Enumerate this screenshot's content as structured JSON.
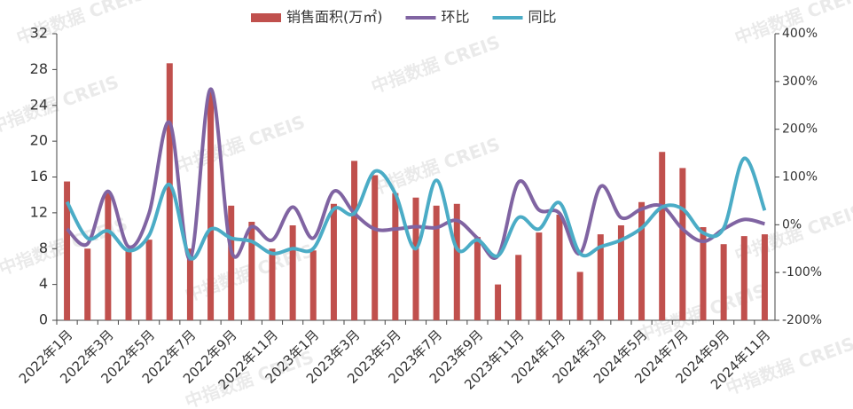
{
  "chart_data": {
    "type": "bar_line",
    "watermark": "中指数据 CREIS",
    "categories": [
      "2022年1月",
      null,
      "2022年3月",
      null,
      "2022年5月",
      null,
      "2022年7月",
      null,
      "2022年9月",
      null,
      "2022年11月",
      null,
      "2023年1月",
      null,
      "2023年3月",
      null,
      "2023年5月",
      null,
      "2023年7月",
      null,
      "2023年9月",
      null,
      "2023年11月",
      null,
      "2024年1月",
      null,
      "2024年3月",
      null,
      "2024年5月",
      null,
      "2024年7月",
      null,
      "2024年9月",
      null,
      "2024年11月"
    ],
    "series": [
      {
        "name": "销售面积(万㎡)",
        "type": "bar",
        "color": "#c0504d",
        "values": [
          15.5,
          8,
          14.2,
          8,
          9,
          28.7,
          8,
          25.5,
          12.8,
          11,
          8,
          10.6,
          7.8,
          13,
          17.8,
          16.2,
          14.2,
          13.7,
          12.8,
          13,
          9.3,
          4,
          7.3,
          9.8,
          11.8,
          5.4,
          9.6,
          10.6,
          13.2,
          18.8,
          17,
          10.4,
          8.5,
          9.4,
          9.6
        ]
      },
      {
        "name": "环比",
        "type": "line",
        "axis": "y2",
        "color": "#8064a2",
        "values": [
          -9,
          -40,
          70,
          -46,
          24,
          214,
          -72,
          284,
          -54,
          -4,
          -32,
          37,
          -28,
          70,
          24,
          -9,
          -9,
          -4,
          -6,
          9,
          -28,
          -65,
          89,
          31,
          24,
          -60,
          80,
          15,
          33,
          39,
          -9,
          -35,
          -9,
          11,
          2
        ]
      },
      {
        "name": "同比",
        "type": "line",
        "axis": "y2",
        "color": "#4bacc6",
        "values": [
          48,
          -28,
          -13,
          -54,
          -22,
          84,
          -69,
          -9,
          -28,
          -35,
          -60,
          -50,
          -50,
          33,
          24,
          112,
          65,
          -50,
          93,
          -50,
          -32,
          -65,
          15,
          -9,
          46,
          -60,
          -46,
          -32,
          -7,
          37,
          33,
          -17,
          -7,
          139,
          30
        ]
      }
    ],
    "ylim": [
      0,
      32
    ],
    "yticks": [
      0,
      4,
      8,
      12,
      16,
      20,
      24,
      28,
      32
    ],
    "y2lim": [
      -200,
      400
    ],
    "y2ticks": [
      {
        "value": -200,
        "label": "-200%"
      },
      {
        "value": -100,
        "label": "-100%"
      },
      {
        "value": 0,
        "label": "0%"
      },
      {
        "value": 100,
        "label": "100%"
      },
      {
        "value": 200,
        "label": "200%"
      },
      {
        "value": 300,
        "label": "300%"
      },
      {
        "value": 400,
        "label": "400%"
      }
    ],
    "legend": "top"
  }
}
